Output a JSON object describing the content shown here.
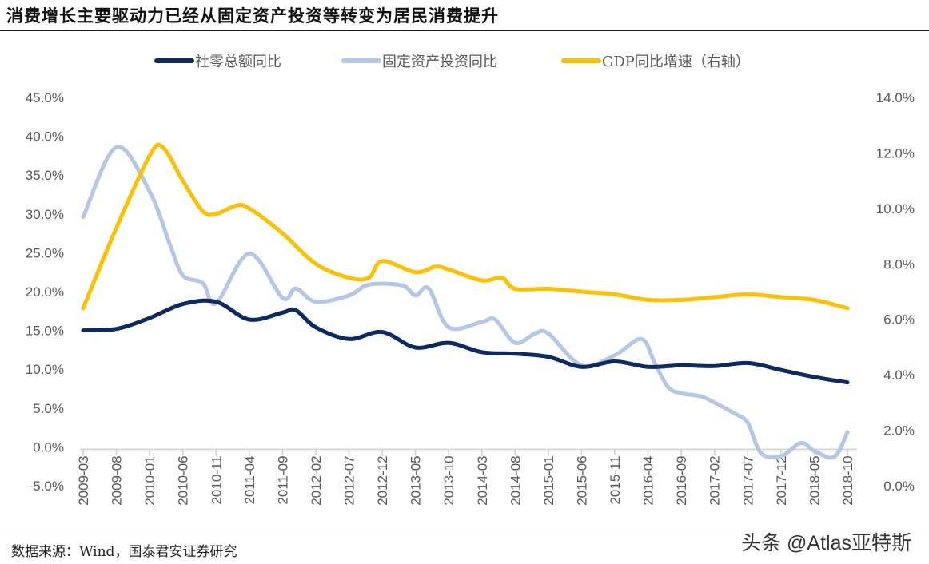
{
  "title": "消费增长主要驱动力已经从固定资产投资等转变为居民消费提升",
  "source": "数据来源：Wind，国泰君安证券研究",
  "watermark": "头条 @Atlas亚特斯",
  "chart_data": {
    "type": "line",
    "title": "",
    "legend_position": "top",
    "grid": false,
    "x_tick_labels": [
      "2009-03",
      "2009-08",
      "2010-01",
      "2010-06",
      "2010-11",
      "2011-04",
      "2011-09",
      "2012-02",
      "2012-07",
      "2012-12",
      "2013-05",
      "2013-10",
      "2014-03",
      "2014-08",
      "2015-01",
      "2015-06",
      "2015-11",
      "2016-04",
      "2016-09",
      "2017-02",
      "2017-07",
      "2017-12",
      "2018-05",
      "2018-10"
    ],
    "y_left": {
      "lim": [
        -5,
        45
      ],
      "ticks": [
        "-5.0%",
        "0.0%",
        "5.0%",
        "10.0%",
        "15.0%",
        "20.0%",
        "25.0%",
        "30.0%",
        "35.0%",
        "40.0%",
        "45.0%"
      ],
      "tick_values": [
        -5,
        0,
        5,
        10,
        15,
        20,
        25,
        30,
        35,
        40,
        45
      ]
    },
    "y_right": {
      "lim": [
        0,
        14
      ],
      "ticks": [
        "0.0%",
        "2.0%",
        "4.0%",
        "6.0%",
        "8.0%",
        "10.0%",
        "12.0%",
        "14.0%"
      ],
      "tick_values": [
        0,
        2,
        4,
        6,
        8,
        10,
        12,
        14
      ]
    },
    "series": [
      {
        "name": "社零总额同比",
        "axis": "left",
        "color": "#0b2a63",
        "x": [
          "2009-03",
          "2009-08",
          "2010-01",
          "2010-06",
          "2010-11",
          "2011-04",
          "2011-09",
          "2011-11",
          "2012-02",
          "2012-07",
          "2012-12",
          "2013-05",
          "2013-10",
          "2014-03",
          "2014-08",
          "2015-01",
          "2015-06",
          "2015-11",
          "2016-04",
          "2016-09",
          "2017-02",
          "2017-07",
          "2017-12",
          "2018-05",
          "2018-10"
        ],
        "y": [
          15.0,
          15.2,
          16.6,
          18.4,
          18.7,
          16.4,
          17.3,
          17.6,
          15.4,
          13.9,
          14.8,
          12.8,
          13.4,
          12.2,
          12.0,
          11.6,
          10.3,
          11.0,
          10.3,
          10.5,
          10.4,
          10.8,
          9.9,
          9.0,
          8.3
        ]
      },
      {
        "name": "固定资产投资同比",
        "axis": "left",
        "color": "#b4c7e7",
        "x": [
          "2009-03",
          "2009-08",
          "2010-01",
          "2010-04",
          "2010-06",
          "2010-09",
          "2010-11",
          "2011-04",
          "2011-09",
          "2011-11",
          "2012-02",
          "2012-07",
          "2012-10",
          "2013-03",
          "2013-05",
          "2013-07",
          "2013-10",
          "2014-03",
          "2014-05",
          "2014-08",
          "2014-11",
          "2015-01",
          "2015-06",
          "2015-11",
          "2016-03",
          "2016-05",
          "2016-07",
          "2016-09",
          "2016-12",
          "2017-02",
          "2017-05",
          "2017-07",
          "2017-09",
          "2017-12",
          "2018-03",
          "2018-05",
          "2018-08",
          "2018-10"
        ],
        "y": [
          29.6,
          38.6,
          32.9,
          26.2,
          22.1,
          21.1,
          18.5,
          24.9,
          19.2,
          20.4,
          18.7,
          19.5,
          20.9,
          20.8,
          19.5,
          20.4,
          15.4,
          16.1,
          16.4,
          13.4,
          14.6,
          14.6,
          10.5,
          11.8,
          13.9,
          10.8,
          7.7,
          6.9,
          6.5,
          5.7,
          4.3,
          3.1,
          -0.8,
          -1.2,
          0.5,
          -0.5,
          -1.3,
          1.9
        ]
      },
      {
        "name": "GDP同比增速（右轴）",
        "axis": "right",
        "color": "#ffc000",
        "x": [
          "2009-03",
          "2009-08",
          "2010-01",
          "2010-03",
          "2010-06",
          "2010-09",
          "2010-11",
          "2011-02",
          "2011-04",
          "2011-09",
          "2012-02",
          "2012-07",
          "2012-10",
          "2012-12",
          "2013-05",
          "2013-08",
          "2013-10",
          "2014-03",
          "2014-06",
          "2014-08",
          "2015-01",
          "2015-06",
          "2015-11",
          "2016-04",
          "2016-09",
          "2017-02",
          "2017-07",
          "2017-12",
          "2018-05",
          "2018-10"
        ],
        "y": [
          6.4,
          9.3,
          11.9,
          12.2,
          11.0,
          9.9,
          9.8,
          10.1,
          10.0,
          9.1,
          8.0,
          7.5,
          7.5,
          8.1,
          7.7,
          7.9,
          7.8,
          7.4,
          7.5,
          7.1,
          7.1,
          7.0,
          6.9,
          6.7,
          6.7,
          6.8,
          6.9,
          6.8,
          6.7,
          6.4
        ]
      }
    ]
  }
}
